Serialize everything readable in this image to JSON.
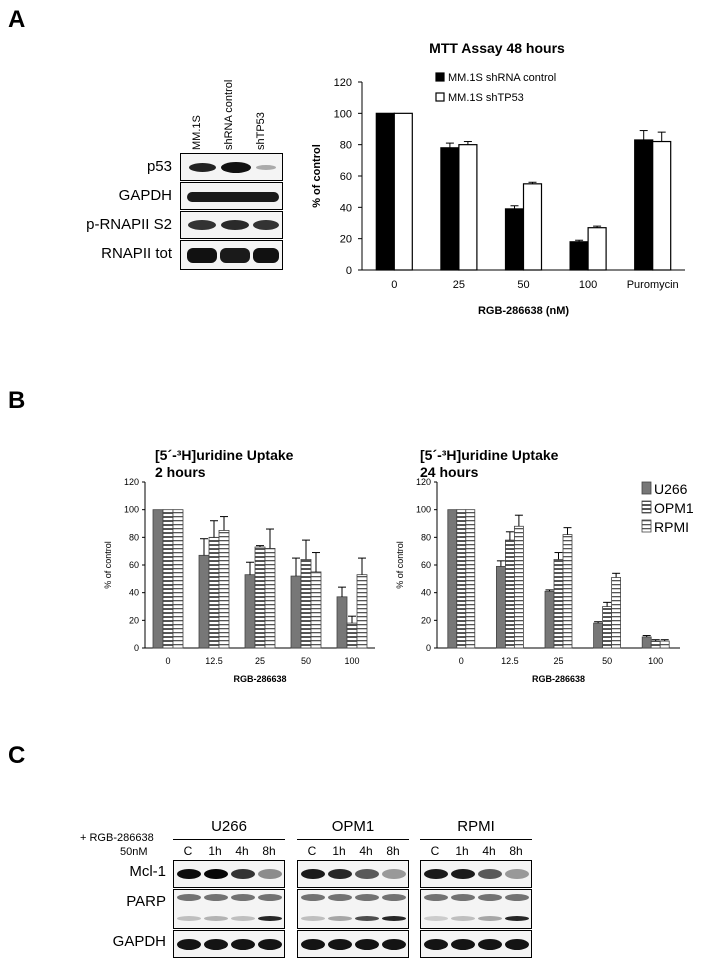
{
  "panels": {
    "a": "A",
    "b": "B",
    "c": "C"
  },
  "panel_a": {
    "blot": {
      "lanes": [
        "MM.1S",
        "shRNA control",
        "shTP53"
      ],
      "rows": [
        "p53",
        "GAPDH",
        "p-RNAPII S2",
        "RNAPII tot"
      ]
    }
  },
  "panel_c": {
    "treatment": "+ RGB-286638",
    "dose": "50nM",
    "groups": [
      {
        "name": "U266",
        "times": [
          "C",
          "1h",
          "4h",
          "8h"
        ]
      },
      {
        "name": "OPM1",
        "times": [
          "C",
          "1h",
          "4h",
          "8h"
        ]
      },
      {
        "name": "RPMI",
        "times": [
          "C",
          "1h",
          "4h",
          "8h"
        ]
      }
    ],
    "rows": [
      "Mcl-1",
      "PARP",
      "GAPDH"
    ]
  },
  "chart_data": [
    {
      "type": "bar",
      "title": "MTT Assay 48 hours",
      "xlabel": "RGB-286638 (nM)",
      "ylabel": "% of control",
      "ylim": [
        0,
        120
      ],
      "yticks": [
        "0",
        "20",
        "40",
        "60",
        "80",
        "100",
        "120"
      ],
      "categories": [
        "0",
        "25",
        "50",
        "100",
        "Puromycin"
      ],
      "legend": "top",
      "series": [
        {
          "name": "MM.1S shRNA control",
          "color": "#000000",
          "values": [
            100,
            78,
            39,
            18,
            83
          ],
          "errors": [
            0,
            3,
            2,
            1,
            6
          ]
        },
        {
          "name": "MM.1S shTP53",
          "color": "#ffffff",
          "values": [
            100,
            80,
            55,
            27,
            82
          ],
          "errors": [
            0,
            2,
            1,
            1,
            6
          ]
        }
      ]
    },
    {
      "type": "bar",
      "title_line1": "[5´-³H]uridine  Uptake",
      "title_line2": "2 hours",
      "xlabel": "RGB-286638",
      "ylabel": "% of control",
      "ylim": [
        0,
        120
      ],
      "yticks": [
        "0",
        "20",
        "40",
        "60",
        "80",
        "100",
        "120"
      ],
      "categories": [
        "0",
        "12.5",
        "25",
        "50",
        "100"
      ],
      "series": [
        {
          "name": "U266",
          "values": [
            100,
            67,
            53,
            52,
            37
          ],
          "errors": [
            0,
            12,
            9,
            13,
            7
          ]
        },
        {
          "name": "OPM1",
          "values": [
            100,
            80,
            73,
            64,
            18
          ],
          "errors": [
            0,
            12,
            1,
            14,
            5
          ]
        },
        {
          "name": "RPMI",
          "values": [
            100,
            85,
            72,
            55,
            53
          ],
          "errors": [
            0,
            10,
            14,
            14,
            12
          ]
        }
      ]
    },
    {
      "type": "bar",
      "title_line1": "[5´-³H]uridine  Uptake",
      "title_line2": "24 hours",
      "xlabel": "RGB-286638",
      "ylabel": "% of control",
      "ylim": [
        0,
        120
      ],
      "yticks": [
        "0",
        "20",
        "40",
        "60",
        "80",
        "100",
        "120"
      ],
      "categories": [
        "0",
        "12.5",
        "25",
        "50",
        "100"
      ],
      "legend": "right",
      "series": [
        {
          "name": "U266",
          "values": [
            100,
            59,
            41,
            18,
            8
          ],
          "errors": [
            0,
            4,
            1,
            1,
            1
          ]
        },
        {
          "name": "OPM1",
          "values": [
            100,
            78,
            64,
            30,
            5
          ],
          "errors": [
            0,
            6,
            5,
            3,
            1
          ]
        },
        {
          "name": "RPMI",
          "values": [
            100,
            88,
            82,
            51,
            5
          ],
          "errors": [
            0,
            8,
            5,
            3,
            1
          ]
        }
      ]
    }
  ]
}
